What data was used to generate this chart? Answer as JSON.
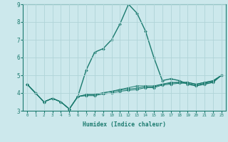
{
  "xlabel": "Humidex (Indice chaleur)",
  "ylabel": "",
  "background_color": "#cce8ec",
  "line_color": "#1a7a6e",
  "grid_color": "#b0d4d8",
  "xlim": [
    -0.5,
    23.5
  ],
  "ylim": [
    3,
    9
  ],
  "x_ticks": [
    0,
    1,
    2,
    3,
    4,
    5,
    6,
    7,
    8,
    9,
    10,
    11,
    12,
    13,
    14,
    15,
    16,
    17,
    18,
    19,
    20,
    21,
    22,
    23
  ],
  "y_ticks": [
    3,
    4,
    5,
    6,
    7,
    8,
    9
  ],
  "lines": [
    {
      "x": [
        0,
        1,
        2,
        3,
        4,
        5,
        6,
        7,
        8,
        9,
        10,
        11,
        12,
        13,
        14,
        15,
        16,
        17,
        18,
        19,
        20,
        21,
        22,
        23
      ],
      "y": [
        4.5,
        4.0,
        3.5,
        3.7,
        3.5,
        3.1,
        3.8,
        5.3,
        6.3,
        6.5,
        7.0,
        7.9,
        9.0,
        8.5,
        7.5,
        6.0,
        4.7,
        4.8,
        4.7,
        4.5,
        4.4,
        4.5,
        4.6,
        5.0
      ]
    },
    {
      "x": [
        0,
        1,
        2,
        3,
        4,
        5,
        6,
        7,
        8,
        9,
        10,
        11,
        12,
        13,
        14,
        15,
        16,
        17,
        18,
        19,
        20,
        21,
        22,
        23
      ],
      "y": [
        4.5,
        4.0,
        3.5,
        3.7,
        3.5,
        3.1,
        3.8,
        3.9,
        3.9,
        4.0,
        4.1,
        4.2,
        4.3,
        4.4,
        4.4,
        4.4,
        4.5,
        4.6,
        4.6,
        4.6,
        4.5,
        4.6,
        4.7,
        5.0
      ]
    },
    {
      "x": [
        0,
        1,
        2,
        3,
        4,
        5,
        6,
        7,
        8,
        9,
        10,
        11,
        12,
        13,
        14,
        15,
        16,
        17,
        18,
        19,
        20,
        21,
        22,
        23
      ],
      "y": [
        4.5,
        4.0,
        3.5,
        3.7,
        3.5,
        3.1,
        3.8,
        3.85,
        3.85,
        3.95,
        4.0,
        4.1,
        4.15,
        4.2,
        4.3,
        4.3,
        4.45,
        4.5,
        4.55,
        4.55,
        4.45,
        4.55,
        4.65,
        5.0
      ]
    },
    {
      "x": [
        0,
        1,
        2,
        3,
        4,
        5,
        6,
        7,
        8,
        9,
        10,
        11,
        12,
        13,
        14,
        15,
        16,
        17,
        18,
        19,
        20,
        21,
        22,
        23
      ],
      "y": [
        4.5,
        4.0,
        3.5,
        3.7,
        3.5,
        3.1,
        3.8,
        3.92,
        3.92,
        4.02,
        4.08,
        4.18,
        4.22,
        4.28,
        4.35,
        4.35,
        4.5,
        4.55,
        4.6,
        4.6,
        4.5,
        4.6,
        4.68,
        5.0
      ]
    }
  ]
}
